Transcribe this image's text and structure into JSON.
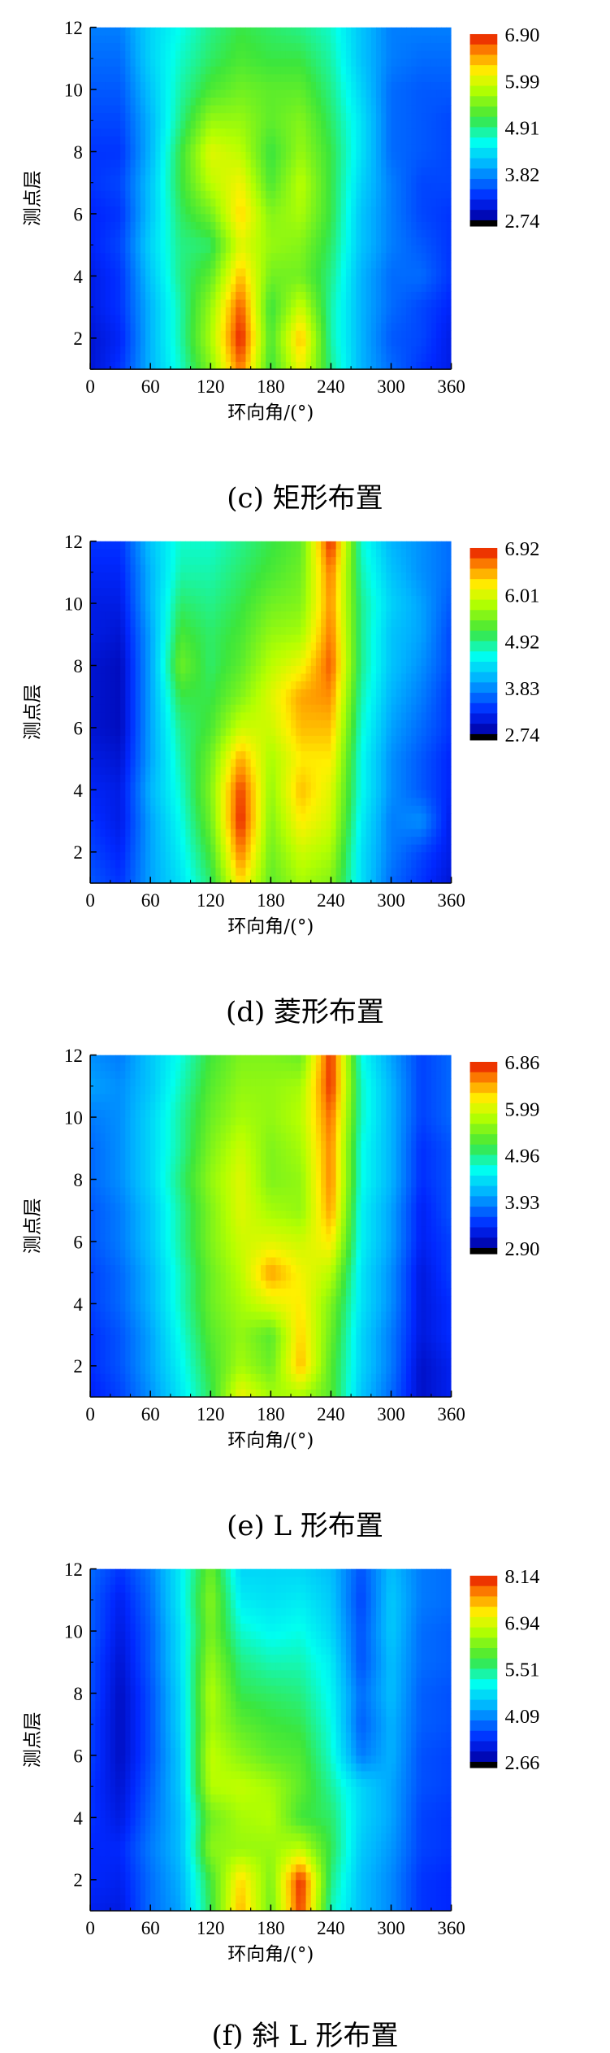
{
  "chart_data": [
    {
      "type": "heatmap",
      "caption": "(c) 矩形布置",
      "xlabel": "环向角/(°)",
      "ylabel": "测点层",
      "xticks": [
        0,
        60,
        120,
        180,
        240,
        300,
        360
      ],
      "yticks": [
        2,
        4,
        6,
        8,
        10,
        12
      ],
      "xlim": [
        0,
        360
      ],
      "ylim": [
        1,
        12
      ],
      "colorbar": {
        "min": 2.74,
        "max": 6.9,
        "labels": [
          "6.90",
          "5.99",
          "4.91",
          "3.82",
          "2.74"
        ]
      },
      "x": [
        0,
        30,
        60,
        90,
        120,
        150,
        180,
        210,
        240,
        270,
        300,
        330,
        360
      ],
      "y": [
        1,
        2,
        3,
        4,
        5,
        6,
        7,
        8,
        9,
        10,
        11,
        12
      ],
      "z": [
        [
          3.0,
          3.3,
          4.0,
          4.6,
          5.4,
          6.6,
          5.0,
          6.0,
          4.8,
          4.0,
          3.6,
          3.3,
          3.1
        ],
        [
          3.0,
          3.2,
          4.0,
          4.7,
          5.6,
          6.9,
          5.1,
          6.3,
          4.7,
          4.0,
          3.5,
          3.4,
          3.1
        ],
        [
          3.1,
          3.3,
          4.0,
          4.7,
          5.5,
          6.7,
          5.0,
          5.8,
          4.7,
          4.0,
          3.6,
          3.4,
          3.2
        ],
        [
          3.1,
          3.3,
          4.1,
          4.8,
          5.2,
          6.3,
          5.3,
          5.3,
          4.8,
          4.0,
          3.6,
          3.6,
          3.3
        ],
        [
          3.2,
          3.4,
          4.2,
          4.8,
          4.9,
          5.9,
          5.5,
          5.4,
          4.9,
          4.1,
          3.7,
          3.5,
          3.3
        ],
        [
          3.2,
          3.3,
          4.1,
          4.9,
          5.3,
          6.2,
          5.4,
          5.6,
          5.0,
          4.1,
          3.7,
          3.4,
          3.3
        ],
        [
          3.3,
          3.4,
          4.1,
          5.0,
          5.7,
          6.0,
          5.1,
          5.7,
          5.0,
          4.2,
          3.7,
          3.4,
          3.4
        ],
        [
          3.3,
          3.3,
          4.0,
          5.0,
          5.9,
          5.7,
          5.0,
          5.5,
          5.0,
          4.3,
          3.6,
          3.5,
          3.4
        ],
        [
          3.4,
          3.4,
          4.0,
          4.8,
          5.5,
          5.5,
          5.2,
          5.4,
          4.9,
          4.3,
          3.6,
          3.5,
          3.4
        ],
        [
          3.5,
          3.5,
          4.1,
          4.7,
          5.1,
          5.3,
          5.2,
          5.2,
          4.8,
          4.2,
          3.6,
          3.5,
          3.5
        ],
        [
          3.6,
          3.6,
          4.2,
          4.6,
          4.9,
          5.1,
          5.0,
          5.0,
          4.7,
          4.1,
          3.7,
          3.6,
          3.6
        ],
        [
          3.7,
          3.7,
          4.2,
          4.5,
          4.8,
          5.0,
          4.9,
          4.8,
          4.6,
          4.1,
          3.7,
          3.7,
          3.7
        ]
      ]
    },
    {
      "type": "heatmap",
      "caption": "(d) 菱形布置",
      "xlabel": "环向角/(°)",
      "ylabel": "测点层",
      "xticks": [
        0,
        60,
        120,
        180,
        240,
        300,
        360
      ],
      "yticks": [
        2,
        4,
        6,
        8,
        10,
        12
      ],
      "xlim": [
        0,
        360
      ],
      "ylim": [
        1,
        12
      ],
      "colorbar": {
        "min": 2.74,
        "max": 6.92,
        "labels": [
          "6.92",
          "6.01",
          "4.92",
          "3.83",
          "2.74"
        ]
      },
      "x": [
        0,
        30,
        60,
        90,
        120,
        150,
        180,
        210,
        240,
        270,
        300,
        330,
        360
      ],
      "y": [
        1,
        2,
        3,
        4,
        5,
        6,
        7,
        8,
        9,
        10,
        11,
        12
      ],
      "z": [
        [
          3.5,
          3.3,
          3.9,
          4.3,
          4.9,
          6.2,
          5.2,
          5.6,
          5.4,
          4.3,
          3.6,
          3.3,
          3.0
        ],
        [
          3.4,
          3.2,
          3.9,
          4.4,
          5.1,
          6.6,
          5.3,
          5.8,
          5.6,
          4.3,
          3.7,
          3.4,
          3.1
        ],
        [
          3.3,
          3.1,
          3.9,
          4.5,
          5.3,
          6.9,
          5.4,
          6.1,
          5.8,
          4.4,
          3.7,
          3.8,
          3.1
        ],
        [
          3.2,
          3.1,
          4.0,
          4.6,
          5.4,
          6.8,
          5.5,
          6.3,
          5.9,
          4.5,
          3.8,
          3.5,
          3.2
        ],
        [
          3.1,
          3.0,
          3.9,
          4.7,
          5.3,
          6.4,
          5.6,
          6.1,
          6.1,
          4.5,
          3.8,
          3.5,
          3.2
        ],
        [
          3.0,
          2.9,
          3.9,
          4.8,
          5.1,
          5.8,
          5.8,
          6.3,
          6.3,
          4.6,
          3.9,
          3.6,
          3.3
        ],
        [
          3.0,
          2.9,
          3.9,
          5.0,
          5.0,
          5.4,
          5.9,
          6.4,
          6.5,
          4.7,
          4.0,
          3.7,
          3.3
        ],
        [
          3.0,
          2.9,
          3.9,
          5.3,
          4.9,
          5.2,
          5.7,
          6.0,
          6.7,
          4.8,
          4.1,
          3.8,
          3.4
        ],
        [
          3.1,
          3.0,
          3.9,
          5.1,
          4.9,
          5.1,
          5.5,
          5.6,
          6.6,
          4.8,
          4.1,
          3.9,
          3.4
        ],
        [
          3.1,
          3.1,
          4.0,
          4.9,
          4.8,
          5.0,
          5.3,
          5.4,
          6.5,
          4.8,
          4.2,
          3.9,
          3.5
        ],
        [
          3.2,
          3.2,
          4.0,
          4.7,
          4.7,
          4.9,
          5.1,
          5.3,
          6.6,
          4.7,
          4.1,
          3.8,
          3.6
        ],
        [
          3.3,
          3.3,
          4.1,
          4.6,
          4.6,
          4.8,
          5.0,
          5.2,
          6.9,
          4.6,
          4.0,
          3.8,
          3.6
        ]
      ]
    },
    {
      "type": "heatmap",
      "caption": "(e) L 形布置",
      "xlabel": "环向角/(°)",
      "ylabel": "测点层",
      "xticks": [
        0,
        60,
        120,
        180,
        240,
        300,
        360
      ],
      "yticks": [
        2,
        4,
        6,
        8,
        10,
        12
      ],
      "xlim": [
        0,
        360
      ],
      "ylim": [
        1,
        12
      ],
      "colorbar": {
        "min": 2.9,
        "max": 6.86,
        "labels": [
          "6.86",
          "5.99",
          "4.96",
          "3.93",
          "2.90"
        ]
      },
      "x": [
        0,
        30,
        60,
        90,
        120,
        150,
        180,
        210,
        240,
        270,
        300,
        330,
        360
      ],
      "y": [
        1,
        2,
        3,
        4,
        5,
        6,
        7,
        8,
        9,
        10,
        11,
        12
      ],
      "z": [
        [
          3.3,
          3.5,
          3.9,
          4.4,
          5.0,
          6.0,
          5.6,
          5.6,
          5.2,
          4.2,
          3.7,
          3.1,
          3.3
        ],
        [
          3.4,
          3.6,
          4.0,
          4.5,
          5.1,
          5.6,
          5.3,
          6.3,
          5.2,
          4.3,
          3.8,
          3.1,
          3.3
        ],
        [
          3.4,
          3.6,
          4.0,
          4.6,
          5.2,
          5.5,
          5.2,
          6.2,
          5.3,
          4.3,
          3.8,
          3.2,
          3.4
        ],
        [
          3.5,
          3.7,
          4.1,
          4.7,
          5.3,
          5.6,
          5.9,
          6.1,
          5.4,
          4.4,
          3.9,
          3.2,
          3.4
        ],
        [
          3.5,
          3.7,
          4.1,
          4.7,
          5.3,
          5.7,
          6.4,
          6.0,
          5.7,
          4.4,
          3.9,
          3.2,
          3.5
        ],
        [
          3.6,
          3.8,
          4.2,
          4.8,
          5.4,
          5.8,
          5.9,
          5.8,
          6.1,
          4.5,
          4.0,
          3.3,
          3.5
        ],
        [
          3.6,
          3.8,
          4.2,
          4.8,
          5.4,
          5.9,
          5.6,
          5.5,
          6.4,
          4.5,
          4.0,
          3.3,
          3.6
        ],
        [
          3.7,
          3.9,
          4.3,
          4.9,
          5.5,
          5.9,
          5.4,
          5.5,
          6.5,
          4.6,
          4.1,
          3.4,
          3.6
        ],
        [
          3.7,
          3.9,
          4.3,
          4.8,
          5.4,
          5.8,
          5.4,
          5.6,
          6.5,
          4.6,
          4.1,
          3.4,
          3.6
        ],
        [
          3.8,
          3.9,
          4.3,
          4.8,
          5.3,
          5.6,
          5.5,
          5.7,
          6.6,
          4.7,
          4.1,
          3.5,
          3.7
        ],
        [
          4.0,
          3.9,
          4.2,
          4.7,
          5.2,
          5.5,
          5.5,
          5.6,
          6.8,
          4.7,
          4.1,
          3.5,
          3.7
        ],
        [
          3.9,
          3.8,
          4.2,
          4.6,
          5.1,
          5.4,
          5.4,
          5.3,
          6.8,
          4.6,
          4.0,
          3.5,
          3.7
        ]
      ]
    },
    {
      "type": "heatmap",
      "caption": "(f) 斜 L 形布置",
      "xlabel": "环向角/(°)",
      "ylabel": "测点层",
      "xticks": [
        0,
        60,
        120,
        180,
        240,
        300,
        360
      ],
      "yticks": [
        2,
        4,
        6,
        8,
        10,
        12
      ],
      "xlim": [
        0,
        360
      ],
      "ylim": [
        1,
        12
      ],
      "colorbar": {
        "min": 2.66,
        "max": 8.14,
        "labels": [
          "8.14",
          "6.94",
          "5.51",
          "4.09",
          "2.66"
        ]
      },
      "x": [
        0,
        30,
        60,
        90,
        120,
        150,
        180,
        210,
        240,
        270,
        300,
        330,
        360
      ],
      "y": [
        1,
        2,
        3,
        4,
        5,
        6,
        7,
        8,
        9,
        10,
        11,
        12
      ],
      "z": [
        [
          3.2,
          3.1,
          3.8,
          4.2,
          5.6,
          7.4,
          6.0,
          8.0,
          5.2,
          4.4,
          4.0,
          3.4,
          3.3
        ],
        [
          3.3,
          3.2,
          3.8,
          4.3,
          5.7,
          7.2,
          6.1,
          8.1,
          5.4,
          4.4,
          4.0,
          3.4,
          3.3
        ],
        [
          3.3,
          3.3,
          3.9,
          4.4,
          6.2,
          6.3,
          6.3,
          6.6,
          5.6,
          4.5,
          4.1,
          3.5,
          3.4
        ],
        [
          3.4,
          3.1,
          3.8,
          4.4,
          6.0,
          6.4,
          6.5,
          5.7,
          5.5,
          4.6,
          4.2,
          3.5,
          3.4
        ],
        [
          3.4,
          3.0,
          3.7,
          4.5,
          6.5,
          6.6,
          6.4,
          5.9,
          5.3,
          4.6,
          4.2,
          3.6,
          3.5
        ],
        [
          3.5,
          2.9,
          3.6,
          4.5,
          6.6,
          6.2,
          5.9,
          5.8,
          5.1,
          3.9,
          4.3,
          3.6,
          3.5
        ],
        [
          3.5,
          2.9,
          3.6,
          4.6,
          6.4,
          5.9,
          5.7,
          5.6,
          5.0,
          3.7,
          4.3,
          3.7,
          3.6
        ],
        [
          3.6,
          2.9,
          3.6,
          4.6,
          6.5,
          5.6,
          5.5,
          5.4,
          4.9,
          3.8,
          4.4,
          3.7,
          3.6
        ],
        [
          3.6,
          3.0,
          3.7,
          4.7,
          6.3,
          5.4,
          5.2,
          5.2,
          4.8,
          3.6,
          4.4,
          3.8,
          3.7
        ],
        [
          3.7,
          3.1,
          3.7,
          4.7,
          6.1,
          5.1,
          4.9,
          5.0,
          4.6,
          3.6,
          4.5,
          3.8,
          3.7
        ],
        [
          3.7,
          3.2,
          3.8,
          4.8,
          6.2,
          4.8,
          4.7,
          4.8,
          4.5,
          3.5,
          4.5,
          3.9,
          3.8
        ],
        [
          3.8,
          3.4,
          3.9,
          4.8,
          6.0,
          4.6,
          4.6,
          4.6,
          4.4,
          3.6,
          4.4,
          3.9,
          3.8
        ]
      ]
    }
  ]
}
